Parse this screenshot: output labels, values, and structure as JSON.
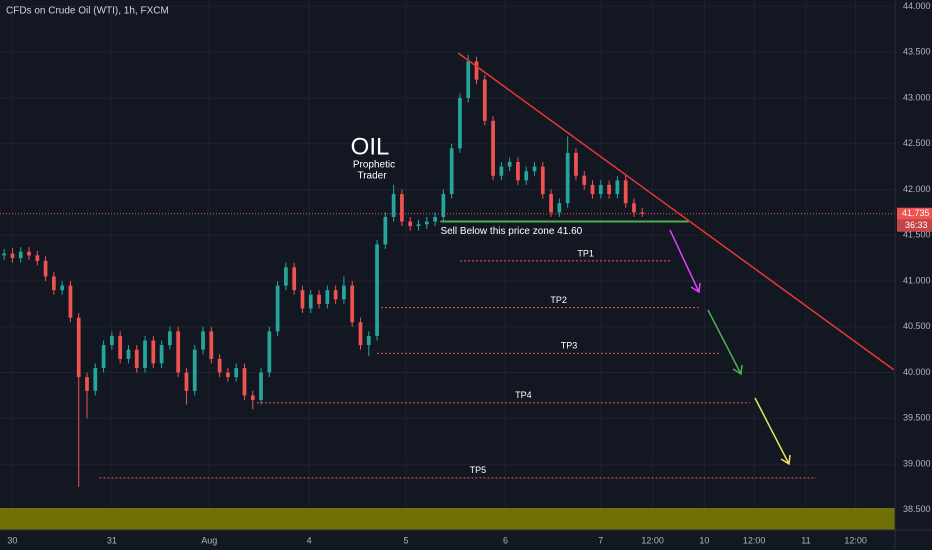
{
  "chart_data": {
    "type": "candlestick",
    "title": "CFDs on Crude Oil (WTI), 1h, FXCM",
    "up_color": "#26a69a",
    "down_color": "#ef5350",
    "xlim": [
      0,
      216
    ],
    "ylim": [
      38.28,
      44.07
    ],
    "xticks": [
      {
        "value": 3,
        "label": "30"
      },
      {
        "value": 27,
        "label": "31"
      },
      {
        "value": 50.5,
        "label": "Aug"
      },
      {
        "value": 74.6,
        "label": "4"
      },
      {
        "value": 98,
        "label": "5"
      },
      {
        "value": 122,
        "label": "6"
      },
      {
        "value": 145,
        "label": "7"
      },
      {
        "value": 157.5,
        "label": "12:00"
      },
      {
        "value": 170,
        "label": "10"
      },
      {
        "value": 182,
        "label": "12:00"
      },
      {
        "value": 194.5,
        "label": "11"
      },
      {
        "value": 206.5,
        "label": "12:00"
      }
    ],
    "yticks": [
      {
        "value": 38.5,
        "label": "38.500"
      },
      {
        "value": 39,
        "label": "39.000"
      },
      {
        "value": 39.5,
        "label": "39.500"
      },
      {
        "value": 40,
        "label": "40.000"
      },
      {
        "value": 40.5,
        "label": "40.500"
      },
      {
        "value": 41,
        "label": "41.000"
      },
      {
        "value": 41.5,
        "label": "41.500"
      },
      {
        "value": 42,
        "label": "42.000"
      },
      {
        "value": 42.5,
        "label": "42.500"
      },
      {
        "value": 43,
        "label": "43.000"
      },
      {
        "value": 43.5,
        "label": "43.500"
      },
      {
        "value": 44,
        "label": "44.000"
      }
    ],
    "grid": true,
    "x": [
      1,
      3,
      5,
      7,
      9,
      11,
      13,
      15,
      17,
      19,
      21,
      23,
      25,
      27,
      29,
      31,
      33,
      35,
      37,
      39,
      41,
      43,
      45,
      47,
      49,
      51,
      53,
      55,
      57,
      59,
      61,
      63,
      65,
      67,
      69,
      71,
      73,
      75,
      77,
      79,
      81,
      83,
      85,
      87,
      89,
      91,
      93,
      95,
      97,
      99,
      101,
      103,
      105,
      107,
      109,
      111,
      113,
      115,
      117,
      119,
      121,
      123,
      125,
      127,
      129,
      131,
      133,
      135,
      137,
      139,
      141,
      143,
      145,
      147,
      149,
      151,
      153,
      155
    ],
    "candles": [
      [
        41.28,
        41.35,
        41.23,
        41.3
      ],
      [
        41.3,
        41.36,
        41.2,
        41.25
      ],
      [
        41.25,
        41.37,
        41.2,
        41.32
      ],
      [
        41.32,
        41.37,
        41.23,
        41.28
      ],
      [
        41.28,
        41.33,
        41.17,
        41.22
      ],
      [
        41.22,
        41.27,
        41.0,
        41.05
      ],
      [
        41.05,
        41.1,
        40.85,
        40.9
      ],
      [
        40.9,
        41.0,
        40.85,
        40.95
      ],
      [
        40.95,
        41.0,
        40.55,
        40.6
      ],
      [
        40.6,
        40.65,
        38.75,
        39.95
      ],
      [
        39.95,
        40.0,
        39.5,
        39.8
      ],
      [
        39.8,
        40.1,
        39.75,
        40.05
      ],
      [
        40.05,
        40.35,
        40.0,
        40.3
      ],
      [
        40.3,
        40.45,
        40.25,
        40.4
      ],
      [
        40.4,
        40.45,
        40.1,
        40.15
      ],
      [
        40.15,
        40.3,
        40.1,
        40.25
      ],
      [
        40.25,
        40.3,
        40.0,
        40.05
      ],
      [
        40.05,
        40.4,
        40.0,
        40.35
      ],
      [
        40.35,
        40.4,
        40.05,
        40.1
      ],
      [
        40.1,
        40.35,
        40.05,
        40.3
      ],
      [
        40.3,
        40.5,
        40.25,
        40.45
      ],
      [
        40.45,
        40.5,
        39.95,
        40.0
      ],
      [
        40.0,
        40.05,
        39.65,
        39.8
      ],
      [
        39.8,
        40.3,
        39.75,
        40.25
      ],
      [
        40.25,
        40.5,
        40.2,
        40.45
      ],
      [
        40.45,
        40.5,
        40.1,
        40.15
      ],
      [
        40.15,
        40.2,
        39.95,
        40.0
      ],
      [
        40.0,
        40.05,
        39.9,
        39.95
      ],
      [
        39.95,
        40.1,
        39.9,
        40.05
      ],
      [
        40.05,
        40.1,
        39.7,
        39.75
      ],
      [
        39.75,
        39.8,
        39.6,
        39.7
      ],
      [
        39.7,
        40.05,
        39.65,
        40.0
      ],
      [
        40.0,
        40.5,
        39.95,
        40.45
      ],
      [
        40.45,
        41.0,
        40.4,
        40.95
      ],
      [
        40.95,
        41.2,
        40.9,
        41.15
      ],
      [
        41.15,
        41.2,
        40.85,
        40.9
      ],
      [
        40.9,
        40.95,
        40.65,
        40.7
      ],
      [
        40.7,
        40.9,
        40.65,
        40.85
      ],
      [
        40.85,
        40.9,
        40.7,
        40.75
      ],
      [
        40.75,
        40.95,
        40.7,
        40.9
      ],
      [
        40.9,
        40.95,
        40.75,
        40.8
      ],
      [
        40.8,
        41.05,
        40.75,
        40.95
      ],
      [
        40.95,
        41.0,
        40.5,
        40.55
      ],
      [
        40.55,
        40.6,
        40.25,
        40.3
      ],
      [
        40.3,
        40.45,
        40.18,
        40.4
      ],
      [
        40.4,
        41.45,
        40.35,
        41.4
      ],
      [
        41.4,
        41.75,
        41.35,
        41.7
      ],
      [
        41.7,
        42.05,
        41.65,
        41.95
      ],
      [
        41.95,
        42.0,
        41.6,
        41.65
      ],
      [
        41.65,
        41.7,
        41.55,
        41.6
      ],
      [
        41.6,
        41.67,
        41.55,
        41.62
      ],
      [
        41.62,
        41.7,
        41.57,
        41.65
      ],
      [
        41.65,
        41.75,
        41.6,
        41.7
      ],
      [
        41.7,
        42.0,
        41.65,
        41.95
      ],
      [
        41.95,
        42.5,
        41.9,
        42.45
      ],
      [
        42.45,
        43.05,
        42.4,
        43.0
      ],
      [
        43.0,
        43.47,
        42.95,
        43.4
      ],
      [
        43.4,
        43.45,
        43.15,
        43.2
      ],
      [
        43.2,
        43.25,
        42.7,
        42.75
      ],
      [
        42.75,
        42.8,
        42.1,
        42.15
      ],
      [
        42.15,
        42.3,
        42.1,
        42.25
      ],
      [
        42.25,
        42.35,
        42.2,
        42.3
      ],
      [
        42.3,
        42.35,
        42.05,
        42.1
      ],
      [
        42.1,
        42.25,
        42.05,
        42.2
      ],
      [
        42.2,
        42.3,
        42.15,
        42.25
      ],
      [
        42.25,
        42.3,
        41.9,
        41.95
      ],
      [
        41.95,
        42.0,
        41.7,
        41.75
      ],
      [
        41.75,
        41.9,
        41.7,
        41.85
      ],
      [
        41.85,
        42.58,
        41.8,
        42.4
      ],
      [
        42.4,
        42.45,
        42.1,
        42.15
      ],
      [
        42.15,
        42.2,
        42.0,
        42.05
      ],
      [
        42.05,
        42.1,
        41.9,
        41.95
      ],
      [
        41.95,
        42.1,
        41.9,
        42.05
      ],
      [
        42.05,
        42.1,
        41.9,
        41.95
      ],
      [
        41.95,
        42.15,
        41.9,
        42.1
      ],
      [
        42.1,
        42.15,
        41.8,
        41.85
      ],
      [
        41.85,
        41.9,
        41.7,
        41.75
      ],
      [
        41.75,
        41.8,
        41.7,
        41.735
      ]
    ],
    "last_price": 41.735,
    "countdown": "36:33",
    "headline": "OIL",
    "author": [
      "Prophetic",
      "Trader"
    ],
    "trendline": {
      "x": [
        110.6,
        215.7
      ],
      "y": [
        43.49,
        40.03
      ]
    },
    "zone": {
      "label": "Sell Below this price zone 41.60",
      "x": [
        106.3,
        166.2
      ],
      "price": 41.65
    },
    "targets": [
      {
        "label": "TP1",
        "price": 41.22,
        "x": [
          111,
          162
        ]
      },
      {
        "label": "TP2",
        "price": 40.71,
        "x": [
          91,
          169
        ]
      },
      {
        "label": "TP3",
        "price": 40.21,
        "x": [
          91,
          174
        ]
      },
      {
        "label": "TP4",
        "price": 39.67,
        "x": [
          62,
          181
        ]
      },
      {
        "label": "TP5",
        "price": 38.85,
        "x": [
          24,
          197
        ]
      }
    ]
  }
}
